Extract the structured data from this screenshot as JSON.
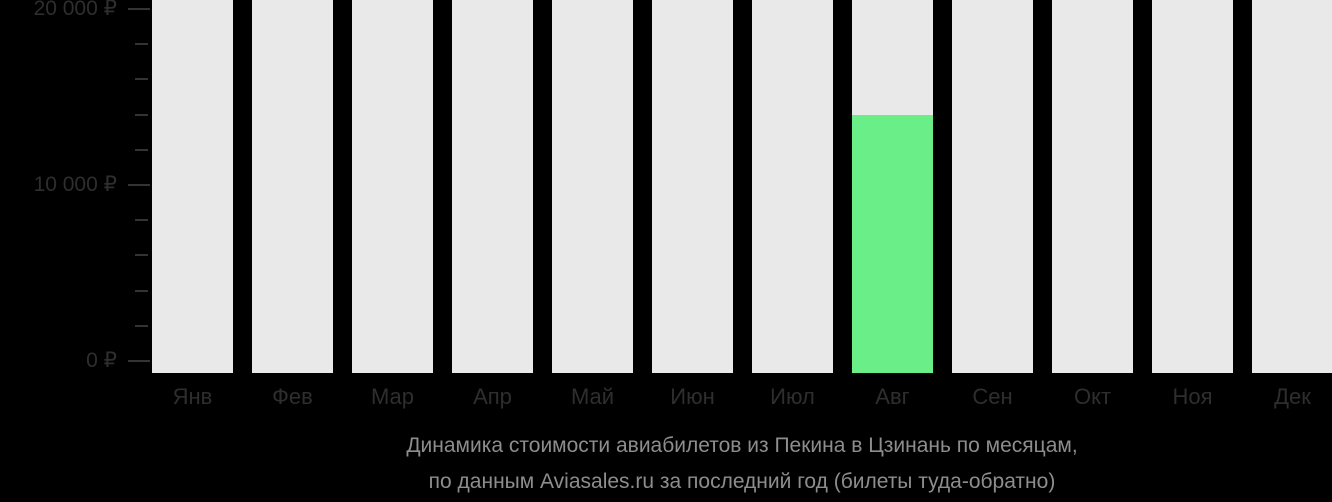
{
  "chart_data": {
    "type": "bar",
    "categories": [
      "Янв",
      "Фев",
      "Мар",
      "Апр",
      "Май",
      "Июн",
      "Июл",
      "Авг",
      "Сен",
      "Окт",
      "Ноя",
      "Дек"
    ],
    "values": [
      null,
      null,
      null,
      null,
      null,
      null,
      null,
      14000,
      null,
      null,
      null,
      null
    ],
    "series_note": "months with null have no price data and are shown as full-height light tracks",
    "title": "Динамика стоимости авиабилетов из Пекина в Цзинань по месяцам, по данным Aviasales.ru за последний год (билеты туда-обратно)",
    "xlabel": "",
    "ylabel": "",
    "ylim": [
      0,
      20000
    ],
    "y_major_step": 10000,
    "y_minor_step": 2000,
    "y_ticks": [
      {
        "value": 0,
        "label": "0 ₽"
      },
      {
        "value": 10000,
        "label": "10 000 ₽"
      },
      {
        "value": 20000,
        "label": "20 000 ₽"
      }
    ],
    "grid": false,
    "legend": false
  },
  "caption": {
    "line1": "Динамика стоимости авиабилетов из Пекина в Цзинань по месяцам,",
    "line2": "по данным Aviasales.ru за последний год (билеты туда-обратно)"
  },
  "colors": {
    "background": "#000000",
    "bar_track": "#E9E9E9",
    "bar_value": "#6AEE88",
    "axis_text": "#2E2E2E",
    "tick": "#333333",
    "caption_text": "#8D8D8D"
  }
}
